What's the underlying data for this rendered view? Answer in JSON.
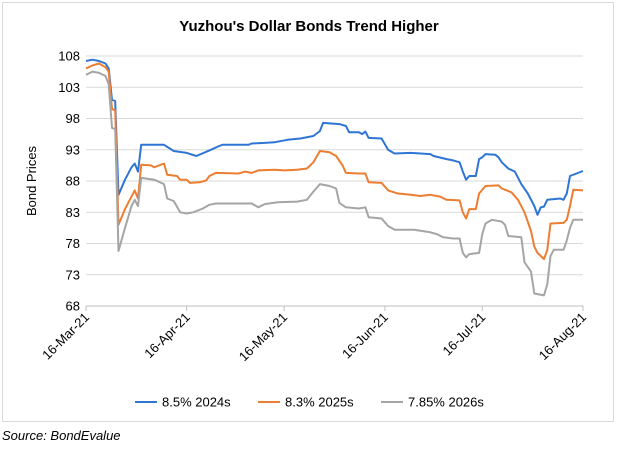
{
  "chart_data": {
    "type": "line",
    "title": "Yuzhou's Dollar Bonds Trend Higher",
    "xlabel": "",
    "ylabel": "Bond Prices",
    "ylim": [
      68,
      108
    ],
    "yticks": [
      68,
      73,
      78,
      83,
      88,
      93,
      98,
      103,
      108
    ],
    "xlim": [
      "2021-03-16",
      "2021-08-16"
    ],
    "xticks": [
      "16-Mar-21",
      "16-Apr-21",
      "16-May-21",
      "16-Jun-21",
      "16-Jul-21",
      "16-Aug-21"
    ],
    "grid": "horizontal",
    "legend": "bottom",
    "series": [
      {
        "name": "8.5% 2024s",
        "color": "#2e75d4",
        "points": [
          [
            "2021-03-16",
            107.2
          ],
          [
            "2021-03-18",
            107.4
          ],
          [
            "2021-03-20",
            107.2
          ],
          [
            "2021-03-22",
            106.8
          ],
          [
            "2021-03-23",
            106.0
          ],
          [
            "2021-03-24",
            101.0
          ],
          [
            "2021-03-25",
            100.8
          ],
          [
            "2021-03-26",
            85.8
          ],
          [
            "2021-03-28",
            88.2
          ],
          [
            "2021-03-30",
            90.2
          ],
          [
            "2021-03-31",
            90.8
          ],
          [
            "2021-04-01",
            89.5
          ],
          [
            "2021-04-02",
            93.8
          ],
          [
            "2021-04-09",
            93.8
          ],
          [
            "2021-04-12",
            92.8
          ],
          [
            "2021-04-16",
            92.5
          ],
          [
            "2021-04-19",
            92.0
          ],
          [
            "2021-04-23",
            92.9
          ],
          [
            "2021-04-26",
            93.6
          ],
          [
            "2021-04-27",
            93.8
          ],
          [
            "2021-05-05",
            93.8
          ],
          [
            "2021-05-06",
            94.0
          ],
          [
            "2021-05-10",
            94.1
          ],
          [
            "2021-05-13",
            94.2
          ],
          [
            "2021-05-17",
            94.6
          ],
          [
            "2021-05-21",
            94.8
          ],
          [
            "2021-05-25",
            95.2
          ],
          [
            "2021-05-27",
            96.0
          ],
          [
            "2021-05-28",
            97.3
          ],
          [
            "2021-06-02",
            97.1
          ],
          [
            "2021-06-04",
            96.8
          ],
          [
            "2021-06-05",
            95.8
          ],
          [
            "2021-06-08",
            95.8
          ],
          [
            "2021-06-09",
            95.5
          ],
          [
            "2021-06-10",
            95.9
          ],
          [
            "2021-06-11",
            94.9
          ],
          [
            "2021-06-15",
            94.8
          ],
          [
            "2021-06-17",
            93.0
          ],
          [
            "2021-06-19",
            92.4
          ],
          [
            "2021-06-24",
            92.5
          ],
          [
            "2021-06-30",
            92.3
          ],
          [
            "2021-07-01",
            92.0
          ],
          [
            "2021-07-05",
            91.5
          ],
          [
            "2021-07-07",
            91.3
          ],
          [
            "2021-07-09",
            91.0
          ],
          [
            "2021-07-10",
            89.5
          ],
          [
            "2021-07-11",
            88.2
          ],
          [
            "2021-07-12",
            88.8
          ],
          [
            "2021-07-14",
            88.8
          ],
          [
            "2021-07-15",
            91.5
          ],
          [
            "2021-07-16",
            91.8
          ],
          [
            "2021-07-17",
            92.3
          ],
          [
            "2021-07-20",
            92.2
          ],
          [
            "2021-07-21",
            91.8
          ],
          [
            "2021-07-22",
            91.0
          ],
          [
            "2021-07-24",
            90.0
          ],
          [
            "2021-07-26",
            89.5
          ],
          [
            "2021-07-28",
            87.5
          ],
          [
            "2021-07-30",
            86.0
          ],
          [
            "2021-08-01",
            84.0
          ],
          [
            "2021-08-02",
            82.6
          ],
          [
            "2021-08-03",
            83.8
          ],
          [
            "2021-08-04",
            83.9
          ],
          [
            "2021-08-05",
            85.0
          ],
          [
            "2021-08-09",
            85.2
          ],
          [
            "2021-08-10",
            85.0
          ],
          [
            "2021-08-11",
            86.0
          ],
          [
            "2021-08-12",
            88.8
          ],
          [
            "2021-08-14",
            89.2
          ],
          [
            "2021-08-16",
            89.6
          ]
        ]
      },
      {
        "name": "8.3% 2025s",
        "color": "#ed7d31",
        "points": [
          [
            "2021-03-16",
            106.0
          ],
          [
            "2021-03-18",
            106.5
          ],
          [
            "2021-03-20",
            106.8
          ],
          [
            "2021-03-22",
            106.2
          ],
          [
            "2021-03-23",
            105.5
          ],
          [
            "2021-03-24",
            99.5
          ],
          [
            "2021-03-25",
            99.3
          ],
          [
            "2021-03-26",
            81.0
          ],
          [
            "2021-03-28",
            83.5
          ],
          [
            "2021-03-30",
            85.5
          ],
          [
            "2021-03-31",
            86.5
          ],
          [
            "2021-04-01",
            85.2
          ],
          [
            "2021-04-02",
            90.6
          ],
          [
            "2021-04-05",
            90.5
          ],
          [
            "2021-04-06",
            90.2
          ],
          [
            "2021-04-09",
            90.8
          ],
          [
            "2021-04-10",
            89.0
          ],
          [
            "2021-04-13",
            88.8
          ],
          [
            "2021-04-14",
            88.2
          ],
          [
            "2021-04-16",
            88.2
          ],
          [
            "2021-04-17",
            87.7
          ],
          [
            "2021-04-20",
            87.8
          ],
          [
            "2021-04-22",
            88.1
          ],
          [
            "2021-04-23",
            88.8
          ],
          [
            "2021-04-25",
            89.3
          ],
          [
            "2021-05-02",
            89.2
          ],
          [
            "2021-05-04",
            89.5
          ],
          [
            "2021-05-06",
            89.3
          ],
          [
            "2021-05-08",
            89.7
          ],
          [
            "2021-05-13",
            89.8
          ],
          [
            "2021-05-16",
            89.7
          ],
          [
            "2021-05-20",
            89.8
          ],
          [
            "2021-05-23",
            90.0
          ],
          [
            "2021-05-25",
            91.0
          ],
          [
            "2021-05-27",
            92.8
          ],
          [
            "2021-05-30",
            92.6
          ],
          [
            "2021-06-01",
            92.0
          ],
          [
            "2021-06-03",
            90.5
          ],
          [
            "2021-06-04",
            89.3
          ],
          [
            "2021-06-08",
            89.2
          ],
          [
            "2021-06-10",
            89.2
          ],
          [
            "2021-06-11",
            87.8
          ],
          [
            "2021-06-15",
            87.7
          ],
          [
            "2021-06-17",
            86.5
          ],
          [
            "2021-06-20",
            86.0
          ],
          [
            "2021-06-24",
            85.8
          ],
          [
            "2021-06-27",
            85.6
          ],
          [
            "2021-06-30",
            85.8
          ],
          [
            "2021-07-03",
            85.5
          ],
          [
            "2021-07-05",
            85.0
          ],
          [
            "2021-07-09",
            84.9
          ],
          [
            "2021-07-10",
            83.0
          ],
          [
            "2021-07-11",
            82.0
          ],
          [
            "2021-07-12",
            83.5
          ],
          [
            "2021-07-14",
            83.5
          ],
          [
            "2021-07-15",
            86.0
          ],
          [
            "2021-07-17",
            87.2
          ],
          [
            "2021-07-21",
            87.3
          ],
          [
            "2021-07-22",
            86.8
          ],
          [
            "2021-07-25",
            86.2
          ],
          [
            "2021-07-27",
            85.0
          ],
          [
            "2021-07-29",
            83.0
          ],
          [
            "2021-07-31",
            80.0
          ],
          [
            "2021-08-01",
            77.5
          ],
          [
            "2021-08-02",
            76.5
          ],
          [
            "2021-08-03",
            76.0
          ],
          [
            "2021-08-04",
            75.5
          ],
          [
            "2021-08-05",
            77.0
          ],
          [
            "2021-08-06",
            81.2
          ],
          [
            "2021-08-10",
            81.3
          ],
          [
            "2021-08-11",
            81.8
          ],
          [
            "2021-08-12",
            84.0
          ],
          [
            "2021-08-13",
            86.6
          ],
          [
            "2021-08-16",
            86.5
          ]
        ]
      },
      {
        "name": "7.85% 2026s",
        "color": "#a5a5a5",
        "points": [
          [
            "2021-03-16",
            105.0
          ],
          [
            "2021-03-18",
            105.5
          ],
          [
            "2021-03-20",
            105.3
          ],
          [
            "2021-03-22",
            104.8
          ],
          [
            "2021-03-23",
            103.5
          ],
          [
            "2021-03-24",
            96.5
          ],
          [
            "2021-03-25",
            96.3
          ],
          [
            "2021-03-26",
            76.8
          ],
          [
            "2021-03-28",
            80.5
          ],
          [
            "2021-03-30",
            84.0
          ],
          [
            "2021-03-31",
            85.0
          ],
          [
            "2021-04-01",
            84.0
          ],
          [
            "2021-04-02",
            88.5
          ],
          [
            "2021-04-06",
            88.2
          ],
          [
            "2021-04-09",
            87.5
          ],
          [
            "2021-04-10",
            85.2
          ],
          [
            "2021-04-12",
            84.8
          ],
          [
            "2021-04-14",
            83.0
          ],
          [
            "2021-04-16",
            82.8
          ],
          [
            "2021-04-18",
            83.0
          ],
          [
            "2021-04-21",
            83.6
          ],
          [
            "2021-04-23",
            84.2
          ],
          [
            "2021-04-25",
            84.4
          ],
          [
            "2021-05-06",
            84.4
          ],
          [
            "2021-05-08",
            83.8
          ],
          [
            "2021-05-10",
            84.3
          ],
          [
            "2021-05-14",
            84.6
          ],
          [
            "2021-05-20",
            84.7
          ],
          [
            "2021-05-23",
            85.0
          ],
          [
            "2021-05-25",
            86.3
          ],
          [
            "2021-05-27",
            87.5
          ],
          [
            "2021-05-30",
            87.2
          ],
          [
            "2021-06-01",
            86.8
          ],
          [
            "2021-06-02",
            84.5
          ],
          [
            "2021-06-04",
            83.8
          ],
          [
            "2021-06-08",
            83.6
          ],
          [
            "2021-06-10",
            83.8
          ],
          [
            "2021-06-11",
            82.2
          ],
          [
            "2021-06-15",
            82.0
          ],
          [
            "2021-06-17",
            80.8
          ],
          [
            "2021-06-19",
            80.2
          ],
          [
            "2021-06-25",
            80.2
          ],
          [
            "2021-06-30",
            79.8
          ],
          [
            "2021-07-02",
            79.5
          ],
          [
            "2021-07-04",
            79.0
          ],
          [
            "2021-07-07",
            78.8
          ],
          [
            "2021-07-09",
            78.8
          ],
          [
            "2021-07-10",
            76.5
          ],
          [
            "2021-07-11",
            75.8
          ],
          [
            "2021-07-12",
            76.3
          ],
          [
            "2021-07-15",
            76.5
          ],
          [
            "2021-07-16",
            79.5
          ],
          [
            "2021-07-17",
            81.2
          ],
          [
            "2021-07-19",
            81.8
          ],
          [
            "2021-07-22",
            81.5
          ],
          [
            "2021-07-23",
            81.0
          ],
          [
            "2021-07-24",
            79.2
          ],
          [
            "2021-07-28",
            79.0
          ],
          [
            "2021-07-29",
            75.0
          ],
          [
            "2021-07-31",
            73.5
          ],
          [
            "2021-08-01",
            70.0
          ],
          [
            "2021-08-04",
            69.7
          ],
          [
            "2021-08-05",
            71.5
          ],
          [
            "2021-08-06",
            76.0
          ],
          [
            "2021-08-07",
            77.0
          ],
          [
            "2021-08-10",
            77.0
          ],
          [
            "2021-08-11",
            78.5
          ],
          [
            "2021-08-12",
            80.5
          ],
          [
            "2021-08-13",
            81.8
          ],
          [
            "2021-08-16",
            81.8
          ]
        ]
      }
    ]
  },
  "source_text": "Source: BondEvalue"
}
